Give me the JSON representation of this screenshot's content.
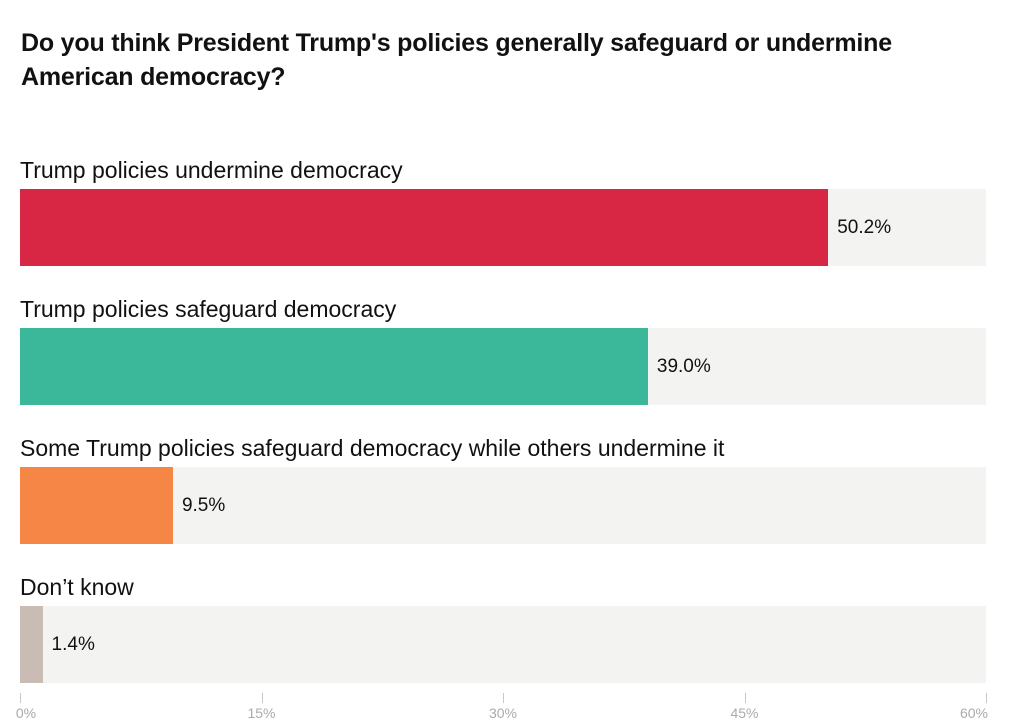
{
  "chart_data": {
    "type": "bar",
    "orientation": "horizontal",
    "title": "Do you think President Trump's policies generally safeguard or undermine American democracy?",
    "xlim": [
      0,
      60
    ],
    "grid": false,
    "bars": [
      {
        "label": "Trump policies undermine democracy",
        "value": 50.2,
        "value_label": "50.2%",
        "color": "#d82745"
      },
      {
        "label": "Trump policies safeguard democracy",
        "value": 39.0,
        "value_label": "39.0%",
        "color": "#3ab899"
      },
      {
        "label": "Some Trump policies safeguard democracy while others undermine it",
        "value": 9.5,
        "value_label": "9.5%",
        "color": "#f68645"
      },
      {
        "label": "Don’t know",
        "value": 1.4,
        "value_label": "1.4%",
        "color": "#c9bcb4"
      }
    ],
    "ticks": [
      {
        "value": 0,
        "label": "0%"
      },
      {
        "value": 15,
        "label": "15%"
      },
      {
        "value": 30,
        "label": "30%"
      },
      {
        "value": 45,
        "label": "45%"
      },
      {
        "value": 60,
        "label": "60%"
      }
    ]
  }
}
